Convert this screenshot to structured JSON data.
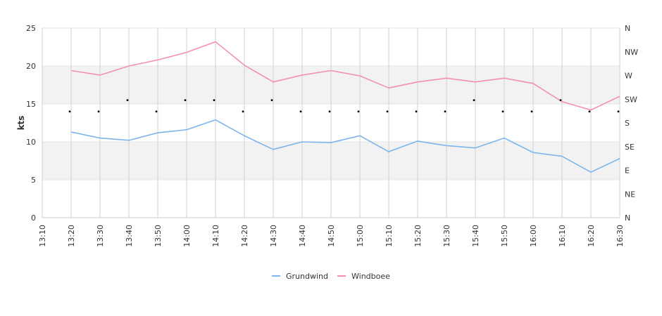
{
  "chart_data": {
    "type": "line",
    "ylabel": "kts",
    "ylim": [
      0,
      25
    ],
    "yticks": [
      0,
      5,
      10,
      15,
      20,
      25
    ],
    "y2ticks": [
      "N",
      "NE",
      "E",
      "SE",
      "S",
      "SW",
      "W",
      "NW",
      "N"
    ],
    "categories": [
      "13:10",
      "13:20",
      "13:30",
      "13:40",
      "13:50",
      "14:00",
      "14:10",
      "14:20",
      "14:30",
      "14:40",
      "14:50",
      "15:00",
      "15:10",
      "15:20",
      "15:30",
      "15:40",
      "15:50",
      "16:00",
      "16:10",
      "16:20",
      "16:30"
    ],
    "series": [
      {
        "name": "Grundwind",
        "color": "#7cb5ec",
        "values": [
          null,
          11.3,
          10.5,
          10.2,
          11.2,
          11.6,
          12.9,
          10.8,
          9.0,
          10.0,
          9.9,
          10.8,
          8.7,
          10.1,
          9.5,
          9.2,
          10.5,
          8.6,
          8.1,
          6.0,
          7.8
        ]
      },
      {
        "name": "Windboee",
        "color": "#f48fb1",
        "values": [
          null,
          19.4,
          18.8,
          20.0,
          20.8,
          21.8,
          23.2,
          20.1,
          17.9,
          18.8,
          19.4,
          18.7,
          17.1,
          17.9,
          18.4,
          17.9,
          18.4,
          17.7,
          15.3,
          14.2,
          16.0
        ]
      }
    ],
    "direction": {
      "values": [
        null,
        14.0,
        14.0,
        15.5,
        14.0,
        15.5,
        15.5,
        14.0,
        15.5,
        14.0,
        14.0,
        14.0,
        14.0,
        14.0,
        14.0,
        15.5,
        14.0,
        14.0,
        15.5,
        14.0,
        14.0
      ],
      "color": "#000000"
    },
    "legend_position": "bottom-center"
  }
}
